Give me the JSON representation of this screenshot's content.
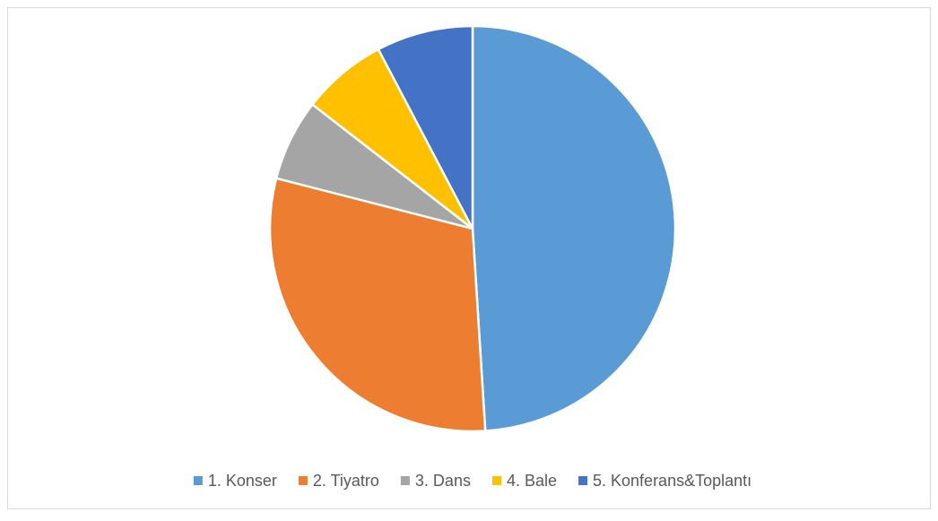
{
  "chart_data": {
    "type": "pie",
    "categories": [
      "1. Konser",
      "2. Tiyatro",
      "3. Dans",
      "4. Bale",
      "5. Konferans&Toplantı"
    ],
    "values": [
      49,
      30,
      6.5,
      6.8,
      7.7
    ],
    "colors": [
      "#5b9bd5",
      "#ed7d31",
      "#a5a5a5",
      "#ffc000",
      "#4472c4"
    ],
    "legend": "bottom"
  }
}
